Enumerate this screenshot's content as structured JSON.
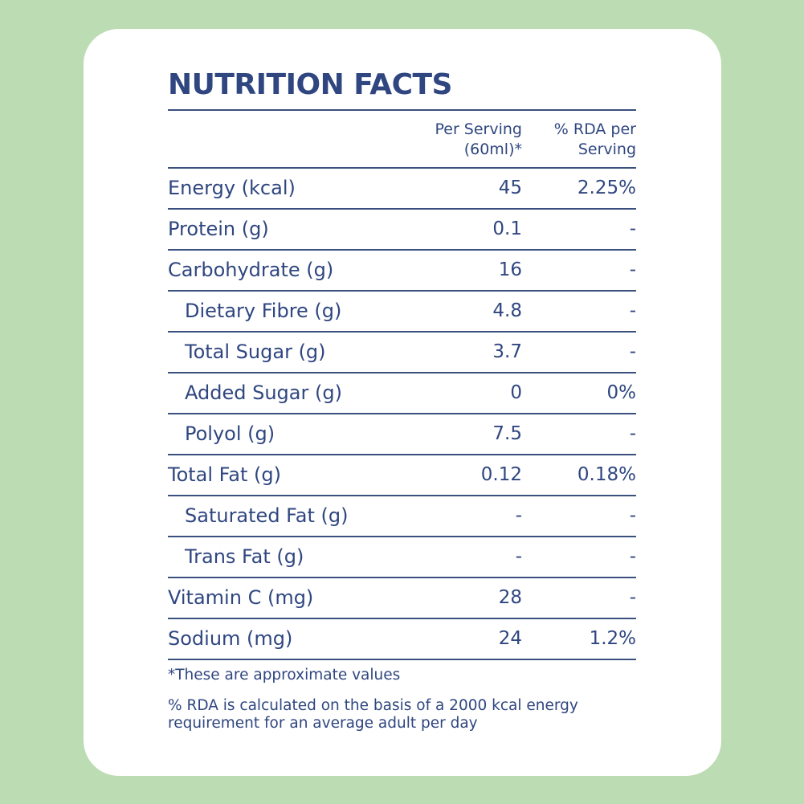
{
  "title": "NUTRITION FACTS",
  "columns": {
    "per_serving_line1": "Per Serving",
    "per_serving_line2": "(60ml)*",
    "rda_line1": "% RDA per",
    "rda_line2": "Serving"
  },
  "rows": [
    {
      "name": "Energy (kcal)",
      "value": "45",
      "rda": "2.25%",
      "indent": false
    },
    {
      "name": "Protein (g)",
      "value": "0.1",
      "rda": "-",
      "indent": false
    },
    {
      "name": "Carbohydrate (g)",
      "value": "16",
      "rda": "-",
      "indent": false
    },
    {
      "name": "Dietary Fibre (g)",
      "value": "4.8",
      "rda": "-",
      "indent": true
    },
    {
      "name": "Total Sugar (g)",
      "value": "3.7",
      "rda": "-",
      "indent": true
    },
    {
      "name": "Added Sugar (g)",
      "value": "0",
      "rda": "0%",
      "indent": true
    },
    {
      "name": "Polyol (g)",
      "value": "7.5",
      "rda": "-",
      "indent": true
    },
    {
      "name": "Total Fat (g)",
      "value": "0.12",
      "rda": "0.18%",
      "indent": false
    },
    {
      "name": "Saturated Fat (g)",
      "value": "-",
      "rda": "-",
      "indent": true
    },
    {
      "name": "Trans Fat (g)",
      "value": "-",
      "rda": "-",
      "indent": true
    },
    {
      "name": "Vitamin C (mg)",
      "value": "28",
      "rda": "-",
      "indent": false
    },
    {
      "name": "Sodium (mg)",
      "value": "24",
      "rda": "1.2%",
      "indent": false
    }
  ],
  "notes": {
    "approx": "*These are approximate values",
    "rda_basis": "% RDA is calculated on the basis of a 2000 kcal energy requirement for an average adult per day"
  },
  "colors": {
    "background": "#bcdcb3",
    "card": "#ffffff",
    "text": "#2f4680"
  }
}
